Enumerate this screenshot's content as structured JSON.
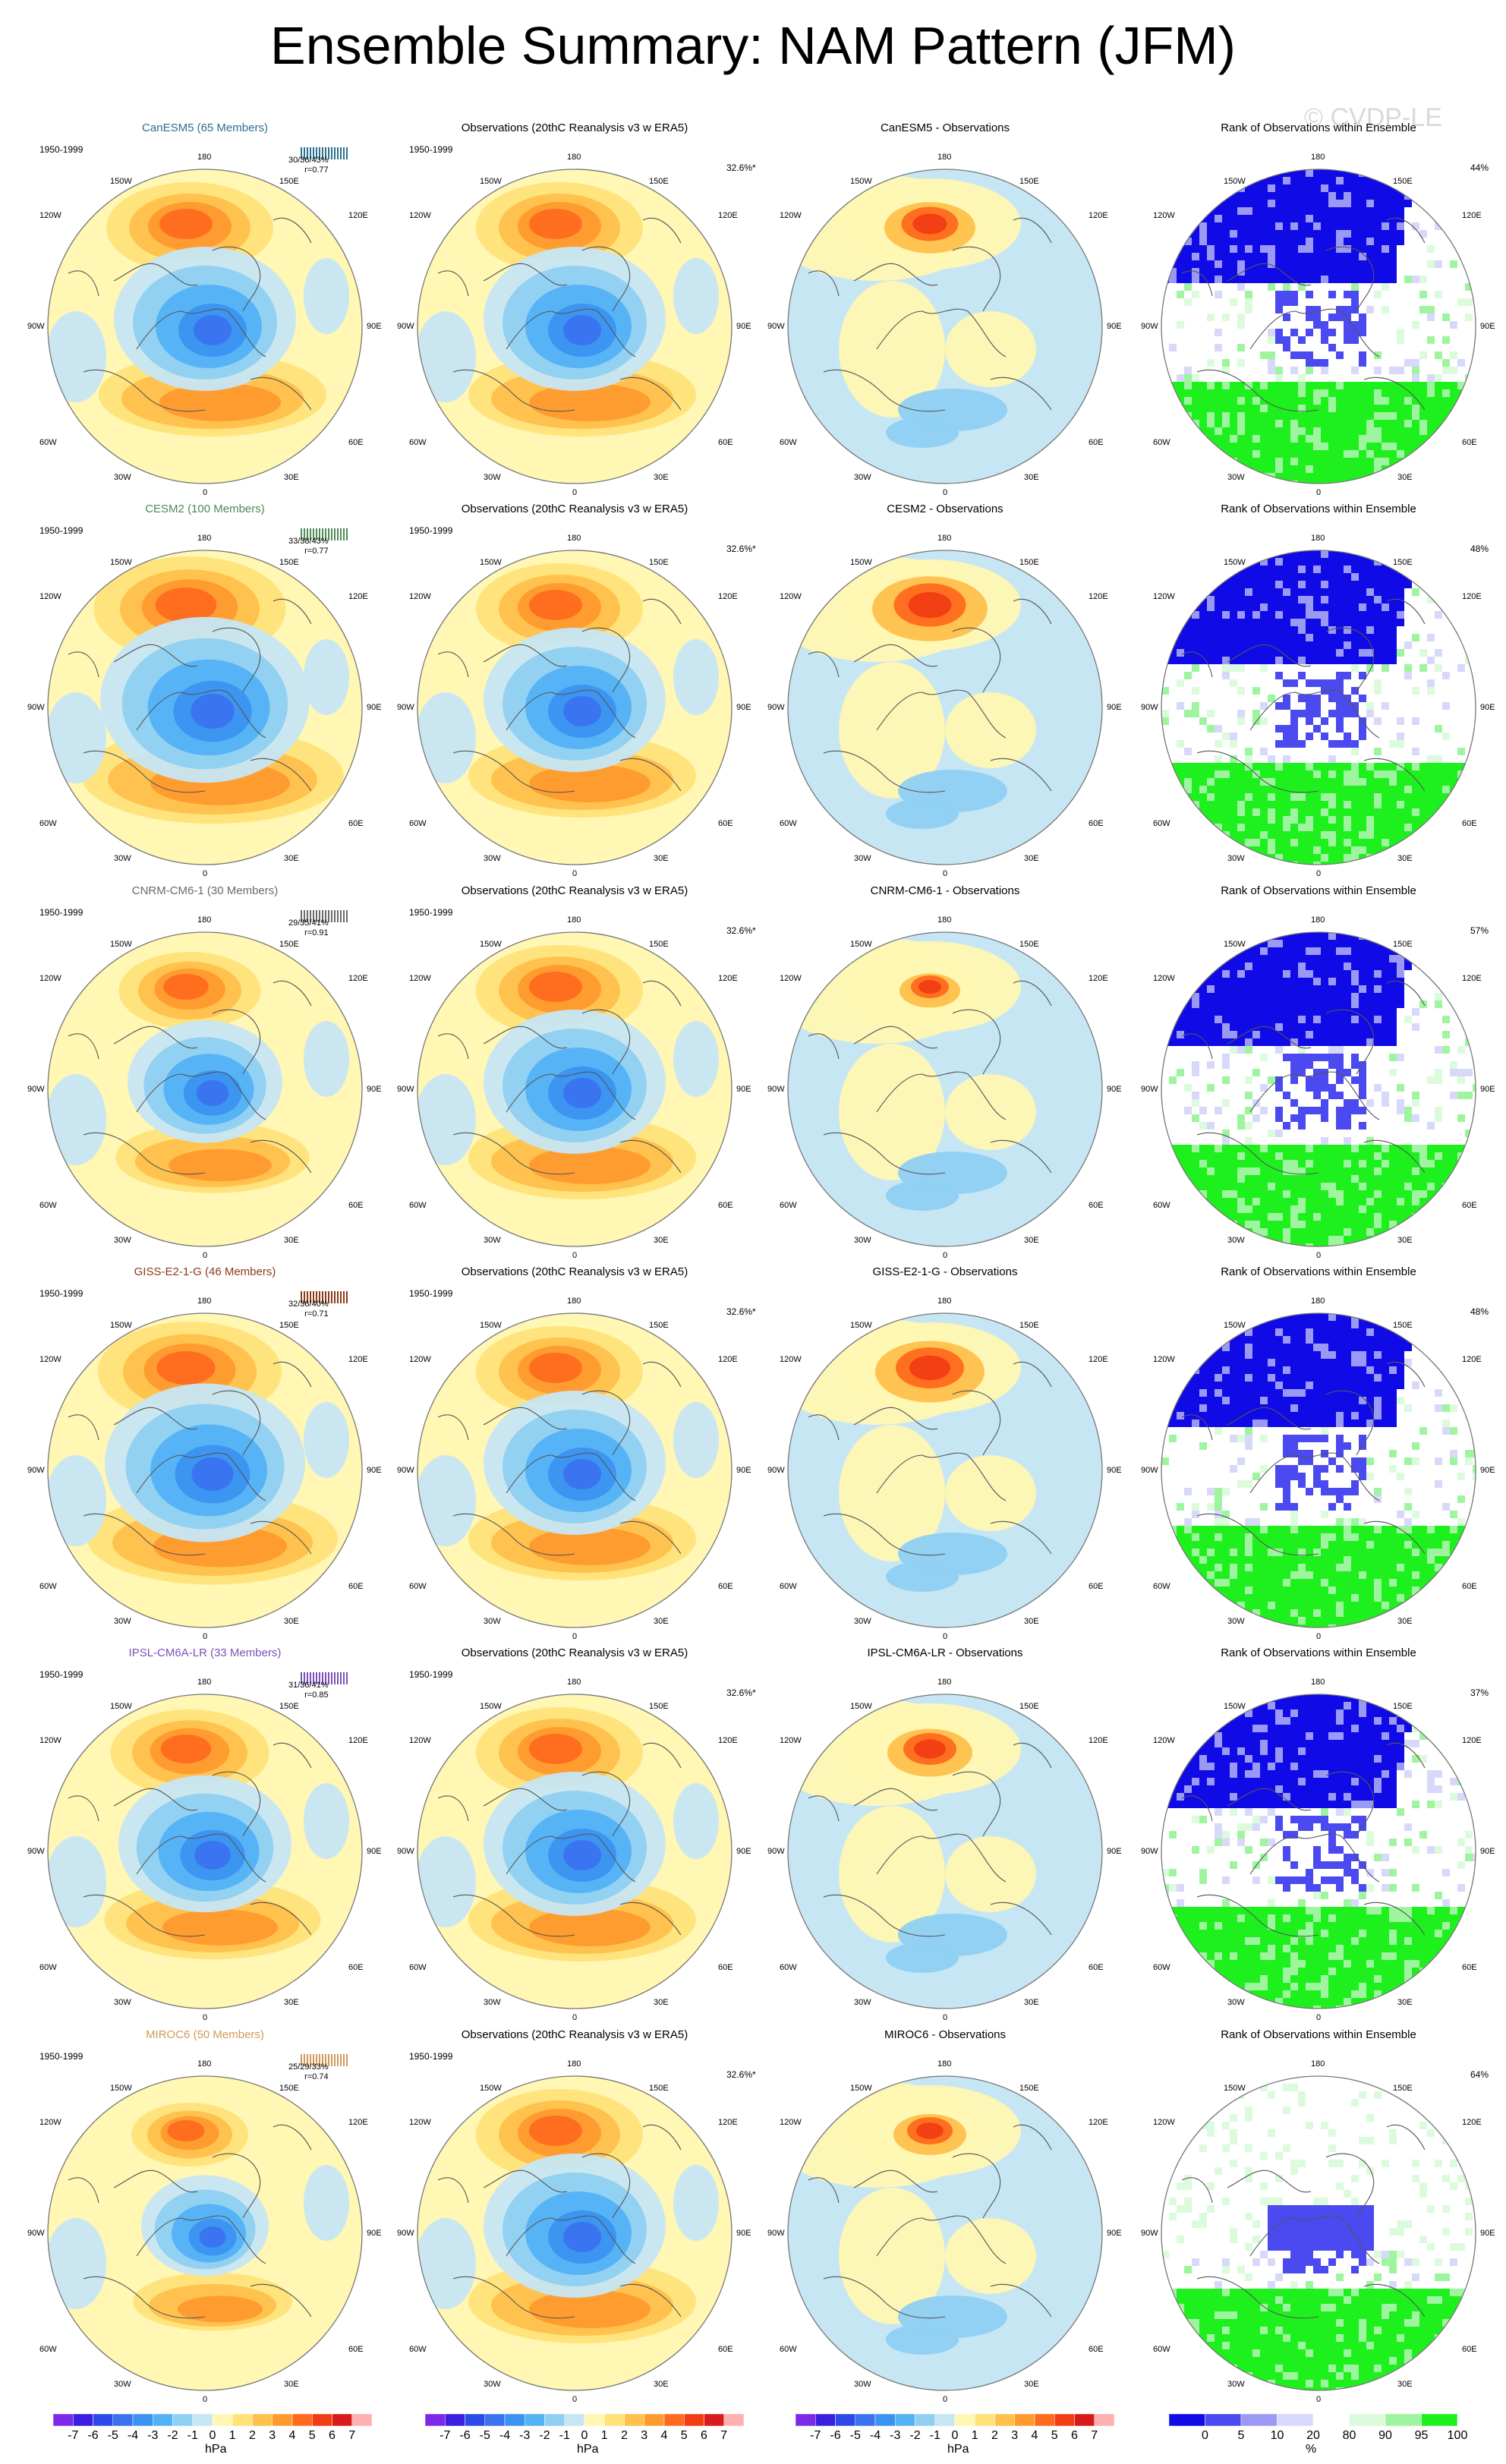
{
  "title": "Ensemble Summary: NAM Pattern (JFM)",
  "watermark": "© CVDP-LE",
  "period": "1950-1999",
  "obs_title": "Observations (20thC Reanalysis v3 w ERA5)",
  "obs_pct": "32.6%*",
  "rank_title": "Rank of Observations within Ensemble",
  "lon_labels": {
    "l180": "180",
    "l150w": "150W",
    "l150e": "150E",
    "l120w": "120W",
    "l120e": "120E",
    "l90w": "90W",
    "l90e": "90E",
    "l60w": "60W",
    "l60e": "60E",
    "l30w": "30W",
    "l30e": "30E",
    "l0": "0"
  },
  "rows": [
    {
      "model": "CanESM5 (65 Members)",
      "model_color": "#2a6f8e",
      "stats": "30/36/43%",
      "r": "r=0.77",
      "diff_title": "CanESM5 - Observations",
      "rank_pct": "44%",
      "model_strength": 1.0,
      "diff_strength": 0.75
    },
    {
      "model": "CESM2 (100 Members)",
      "model_color": "#4e8a58",
      "stats": "33/38/43%",
      "r": "r=0.77",
      "diff_title": "CESM2 - Observations",
      "rank_pct": "48%",
      "model_strength": 1.15,
      "diff_strength": 0.95
    },
    {
      "model": "CNRM-CM6-1 (30 Members)",
      "model_color": "#6a6a6a",
      "stats": "29/35/41%",
      "r": "r=0.91",
      "diff_title": "CNRM-CM6-1 - Observations",
      "rank_pct": "57%",
      "model_strength": 0.85,
      "diff_strength": 0.5
    },
    {
      "model": "GISS-E2-1-G (46 Members)",
      "model_color": "#8b3a1a",
      "stats": "32/36/40%",
      "r": "r=0.71",
      "diff_title": "GISS-E2-1-G - Observations",
      "rank_pct": "48%",
      "model_strength": 1.1,
      "diff_strength": 0.9
    },
    {
      "model": "IPSL-CM6A-LR (33 Members)",
      "model_color": "#7b52b8",
      "stats": "31/36/41%",
      "r": "r=0.85",
      "diff_title": "IPSL-CM6A-LR - Observations",
      "rank_pct": "37%",
      "model_strength": 0.95,
      "diff_strength": 0.7
    },
    {
      "model": "MIROC6 (50 Members)",
      "model_color": "#d19a5a",
      "stats": "25/29/33%",
      "r": "r=0.74",
      "diff_title": "MIROC6 - Observations",
      "rank_pct": "64%",
      "model_strength": 0.7,
      "diff_strength": 0.6
    }
  ],
  "colorbar_hpa": {
    "labels": [
      "-7",
      "-6",
      "-5",
      "-4",
      "-3",
      "-2",
      "-1",
      "0",
      "1",
      "2",
      "3",
      "4",
      "5",
      "6",
      "7"
    ],
    "colors": [
      "#7d2ae8",
      "#3b1fe0",
      "#2b4ae8",
      "#3a72ef",
      "#3a93f0",
      "#52b2f5",
      "#8fd0f2",
      "#c7e6f4",
      "#fff7b3",
      "#ffe27a",
      "#ffc04c",
      "#ff9a2e",
      "#ff6a1e",
      "#f23c14",
      "#d91a1a",
      "#ffb0b0"
    ],
    "unit": "hPa"
  },
  "colorbar_rank": {
    "labels": [
      "0",
      "5",
      "10",
      "20",
      "80",
      "90",
      "95",
      "100"
    ],
    "colors": [
      "#0f0ae6",
      "#4a4af0",
      "#9a9af5",
      "#d8d8fb",
      "#ffffff",
      "#dcfadc",
      "#9ff59f",
      "#1ef01e"
    ],
    "unit": "%"
  }
}
